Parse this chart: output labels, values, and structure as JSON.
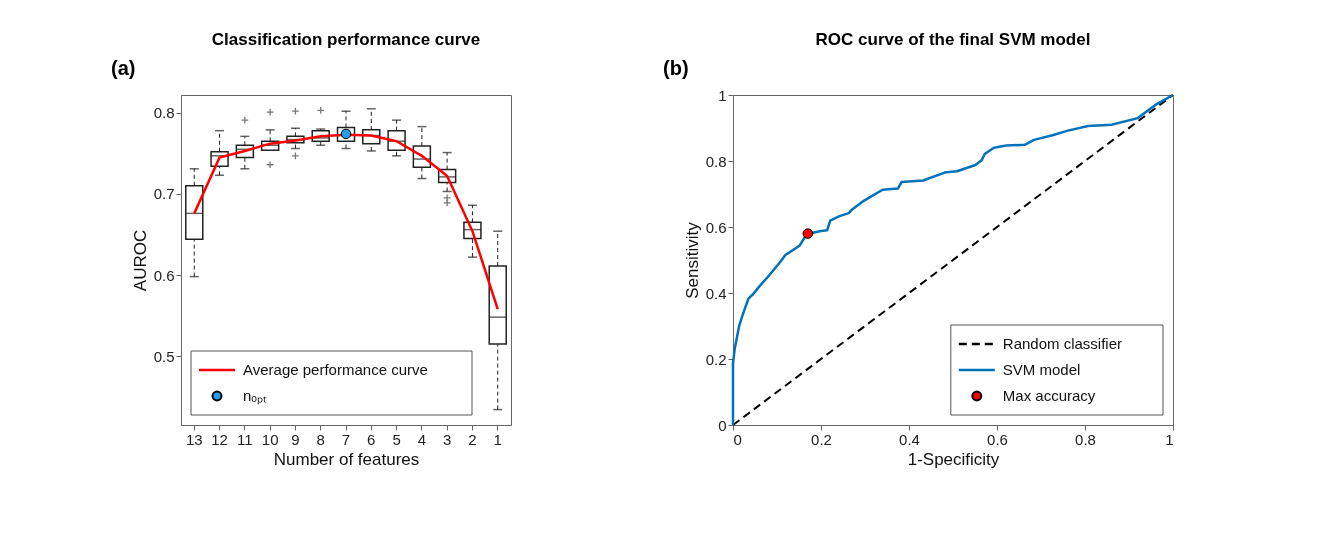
{
  "chart_data": [
    {
      "type": "box",
      "title": "Classification performance curve",
      "xlabel": "Number of features",
      "ylabel": "AUROC",
      "annotations": [
        "(a)"
      ],
      "categories": [
        "13",
        "12",
        "11",
        "10",
        "9",
        "8",
        "7",
        "6",
        "5",
        "4",
        "3",
        "2",
        "1"
      ],
      "ylim": [
        0.415,
        0.822
      ],
      "yticks": [
        0.5,
        0.6,
        0.7,
        0.8
      ],
      "grid": false,
      "legend": "bottom left",
      "boxes": [
        {
          "low": 0.598,
          "q1": 0.644,
          "median": 0.676,
          "q3": 0.71,
          "high": 0.731
        },
        {
          "low": 0.723,
          "q1": 0.734,
          "median": 0.747,
          "q3": 0.752,
          "high": 0.778
        },
        {
          "low": 0.731,
          "q1": 0.745,
          "median": 0.755,
          "q3": 0.76,
          "high": 0.771,
          "outliers": [
            0.791
          ]
        },
        {
          "low": 0.754,
          "q1": 0.754,
          "median": 0.76,
          "q3": 0.765,
          "high": 0.779,
          "outliers": [
            0.801,
            0.736
          ]
        },
        {
          "low": 0.756,
          "q1": 0.763,
          "median": 0.767,
          "q3": 0.771,
          "high": 0.781,
          "outliers": [
            0.802,
            0.747
          ]
        },
        {
          "low": 0.76,
          "q1": 0.765,
          "median": 0.769,
          "q3": 0.778,
          "high": 0.78,
          "outliers": [
            0.803
          ]
        },
        {
          "low": 0.756,
          "q1": 0.765,
          "median": 0.773,
          "q3": 0.782,
          "high": 0.802
        },
        {
          "low": 0.753,
          "q1": 0.762,
          "median": 0.772,
          "q3": 0.779,
          "high": 0.805
        },
        {
          "low": 0.747,
          "q1": 0.754,
          "median": 0.765,
          "q3": 0.778,
          "high": 0.791
        },
        {
          "low": 0.719,
          "q1": 0.733,
          "median": 0.743,
          "q3": 0.759,
          "high": 0.783
        },
        {
          "low": 0.703,
          "q1": 0.714,
          "median": 0.721,
          "q3": 0.73,
          "high": 0.751,
          "outliers": [
            0.695,
            0.689
          ]
        },
        {
          "low": 0.622,
          "q1": 0.645,
          "median": 0.656,
          "q3": 0.665,
          "high": 0.686
        },
        {
          "low": 0.434,
          "q1": 0.515,
          "median": 0.548,
          "q3": 0.611,
          "high": 0.654
        }
      ],
      "series": [
        {
          "name": "Average performance curve",
          "type": "line",
          "color": "#ff0000",
          "line_style": "solid",
          "values": [
            0.676,
            0.745,
            0.753,
            0.762,
            0.766,
            0.771,
            0.773,
            0.772,
            0.765,
            0.747,
            0.722,
            0.654,
            0.558
          ]
        },
        {
          "name": "nₒₚₜ",
          "type": "scatter",
          "color": "#1e9ff2",
          "marker": "circle",
          "x": [
            "7"
          ],
          "values": [
            0.774
          ]
        }
      ]
    },
    {
      "type": "line",
      "title": "ROC curve of the final SVM model",
      "xlabel": "1-Specificity",
      "ylabel": "Sensitivity",
      "annotations": [
        "(b)"
      ],
      "xlim": [
        0,
        1
      ],
      "ylim": [
        0,
        1
      ],
      "xticks": [
        0,
        0.2,
        0.4,
        0.6,
        0.8,
        1
      ],
      "yticks": [
        0,
        0.2,
        0.4,
        0.6,
        0.8,
        1
      ],
      "grid": false,
      "legend": "bottom right",
      "series": [
        {
          "name": "Random classifier",
          "type": "line",
          "color": "#000000",
          "line_style": "dashed",
          "x": [
            0,
            1
          ],
          "values": [
            0,
            1
          ]
        },
        {
          "name": "SVM model",
          "type": "line",
          "color": "#0072bd",
          "line_style": "solid",
          "x": [
            0,
            0,
            0.004,
            0.014,
            0.021,
            0.035,
            0.046,
            0.06,
            0.08,
            0.105,
            0.119,
            0.151,
            0.168,
            0.2,
            0.214,
            0.221,
            0.242,
            0.263,
            0.27,
            0.298,
            0.34,
            0.375,
            0.383,
            0.432,
            0.481,
            0.509,
            0.551,
            0.565,
            0.572,
            0.593,
            0.621,
            0.663,
            0.684,
            0.726,
            0.761,
            0.807,
            0.86,
            0.92,
            0.96,
            1
          ],
          "values": [
            0,
            0.186,
            0.232,
            0.3,
            0.33,
            0.383,
            0.397,
            0.42,
            0.45,
            0.49,
            0.515,
            0.543,
            0.579,
            0.588,
            0.59,
            0.619,
            0.633,
            0.642,
            0.652,
            0.68,
            0.713,
            0.717,
            0.736,
            0.741,
            0.765,
            0.769,
            0.788,
            0.802,
            0.821,
            0.84,
            0.847,
            0.849,
            0.864,
            0.878,
            0.892,
            0.906,
            0.91,
            0.93,
            0.97,
            1
          ]
        },
        {
          "name": "Max accuracy",
          "type": "scatter",
          "color": "#ff0000",
          "marker": "circle",
          "x": [
            0.17
          ],
          "values": [
            0.58
          ]
        }
      ]
    }
  ]
}
